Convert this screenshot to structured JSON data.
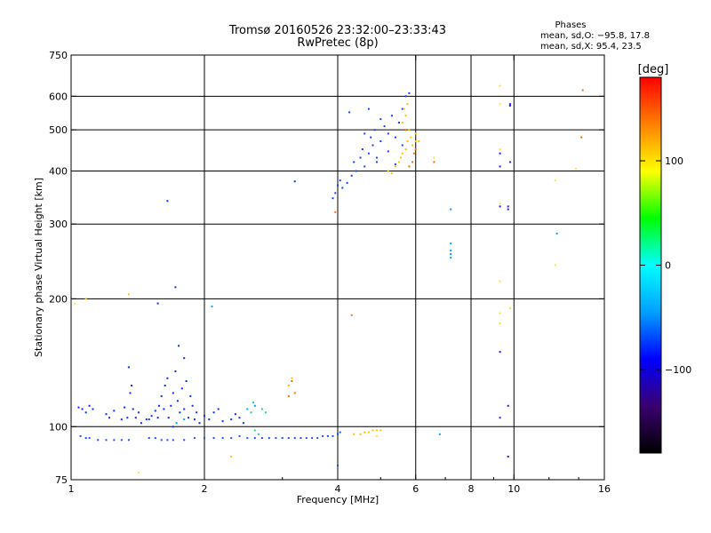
{
  "chart_data": {
    "type": "scatter",
    "title": "Tromsø 20160526 23:32:00–23:33:43",
    "subtitle": "RwPretec (8p)",
    "xlabel": "Frequency [MHz]",
    "ylabel": "Stationary phase Virtual Height [km]",
    "x_scale": "log",
    "y_scale": "log",
    "xlim": [
      1,
      16
    ],
    "ylim": [
      75,
      750
    ],
    "x_ticks": [
      1,
      2,
      4,
      6,
      8,
      10,
      16
    ],
    "x_tick_labels": [
      "1",
      "2",
      "4",
      "6",
      "8",
      "10",
      "16"
    ],
    "x_grid": [
      2,
      4,
      6,
      8,
      10
    ],
    "y_ticks": [
      75,
      100,
      200,
      300,
      400,
      500,
      600,
      750
    ],
    "y_tick_labels": [
      "75",
      "100",
      "200",
      "300",
      "400",
      "500",
      "600",
      "750"
    ],
    "y_grid": [
      100,
      200,
      300,
      400,
      500,
      600
    ],
    "phases_box": {
      "title": "Phases",
      "line_o": "mean, sd,O: −95.8, 17.8",
      "line_x": "mean, sd,X:  95.4, 23.5"
    },
    "colorbar": {
      "label": "[deg]",
      "range": [
        -180,
        180
      ],
      "ticks": [
        100,
        0,
        -100
      ],
      "tick_labels": [
        "100",
        "0",
        "−100"
      ],
      "stops": [
        "#000000",
        "#3a0070",
        "#0000ff",
        "#00a0ff",
        "#00ffff",
        "#00ff00",
        "#ffff00",
        "#ff8000",
        "#ff0000"
      ]
    },
    "series": [
      {
        "color": "#0a2cff",
        "points": [
          [
            1.04,
            111
          ],
          [
            1.06,
            110
          ],
          [
            1.08,
            108
          ],
          [
            1.1,
            112
          ],
          [
            1.12,
            110
          ],
          [
            1.2,
            107
          ],
          [
            1.22,
            105
          ],
          [
            1.25,
            109
          ],
          [
            1.3,
            104
          ],
          [
            1.32,
            111
          ],
          [
            1.34,
            105
          ],
          [
            1.36,
            120
          ],
          [
            1.37,
            125
          ],
          [
            1.38,
            110
          ],
          [
            1.4,
            105
          ],
          [
            1.42,
            108
          ],
          [
            1.44,
            102
          ],
          [
            1.5,
            104
          ],
          [
            1.52,
            106
          ],
          [
            1.55,
            109
          ],
          [
            1.57,
            105
          ],
          [
            1.58,
            112
          ],
          [
            1.6,
            118
          ],
          [
            1.62,
            110
          ],
          [
            1.63,
            125
          ],
          [
            1.65,
            130
          ],
          [
            1.66,
            105
          ],
          [
            1.68,
            112
          ],
          [
            1.7,
            120
          ],
          [
            1.72,
            135
          ],
          [
            1.74,
            115
          ],
          [
            1.76,
            108
          ],
          [
            1.78,
            123
          ],
          [
            1.8,
            110
          ],
          [
            1.82,
            128
          ],
          [
            1.84,
            105
          ],
          [
            1.86,
            118
          ],
          [
            1.88,
            112
          ],
          [
            1.9,
            104
          ],
          [
            1.92,
            108
          ],
          [
            1.95,
            102
          ],
          [
            2.0,
            106
          ],
          [
            2.05,
            104
          ],
          [
            2.1,
            108
          ],
          [
            2.15,
            110
          ],
          [
            2.2,
            103
          ],
          [
            2.3,
            104
          ],
          [
            2.35,
            107
          ],
          [
            2.4,
            105
          ],
          [
            2.45,
            102
          ],
          [
            1.35,
            138
          ],
          [
            1.57,
            195
          ],
          [
            1.65,
            340
          ],
          [
            1.72,
            213
          ],
          [
            1.75,
            155
          ],
          [
            1.8,
            145
          ],
          [
            1.48,
            104
          ],
          [
            1.7,
            100
          ],
          [
            3.2,
            378
          ]
        ]
      },
      {
        "color": "#1a50ff",
        "points": [
          [
            1.05,
            95
          ],
          [
            1.08,
            94
          ],
          [
            1.1,
            94
          ],
          [
            1.15,
            93
          ],
          [
            1.2,
            93
          ],
          [
            1.25,
            93
          ],
          [
            1.3,
            93
          ],
          [
            1.35,
            93
          ],
          [
            1.5,
            94
          ],
          [
            1.55,
            94
          ],
          [
            1.6,
            93
          ],
          [
            1.65,
            93
          ],
          [
            1.7,
            93
          ],
          [
            1.8,
            93
          ],
          [
            1.9,
            94
          ],
          [
            2.0,
            94
          ],
          [
            2.1,
            94
          ],
          [
            2.2,
            94
          ],
          [
            2.3,
            94
          ],
          [
            2.4,
            95
          ],
          [
            2.5,
            94
          ],
          [
            2.6,
            94
          ],
          [
            2.7,
            94
          ],
          [
            2.8,
            94
          ],
          [
            2.9,
            94
          ],
          [
            3.0,
            94
          ],
          [
            3.1,
            94
          ],
          [
            3.2,
            94
          ],
          [
            3.3,
            94
          ],
          [
            3.4,
            94
          ],
          [
            3.5,
            94
          ],
          [
            3.6,
            94
          ],
          [
            3.7,
            95
          ],
          [
            3.8,
            95
          ],
          [
            3.9,
            95
          ],
          [
            4.0,
            96
          ],
          [
            4.05,
            97
          ],
          [
            4.0,
            81
          ]
        ]
      },
      {
        "color": "#1a3cff",
        "points": [
          [
            3.9,
            345
          ],
          [
            3.95,
            355
          ],
          [
            4.0,
            370
          ],
          [
            4.05,
            380
          ],
          [
            4.1,
            365
          ],
          [
            4.2,
            375
          ],
          [
            4.3,
            390
          ],
          [
            4.35,
            420
          ],
          [
            4.4,
            400
          ],
          [
            4.5,
            430
          ],
          [
            4.55,
            450
          ],
          [
            4.6,
            410
          ],
          [
            4.7,
            440
          ],
          [
            4.75,
            480
          ],
          [
            4.8,
            460
          ],
          [
            4.85,
            500
          ],
          [
            4.9,
            430
          ],
          [
            5.0,
            470
          ],
          [
            5.1,
            510
          ],
          [
            5.2,
            490
          ],
          [
            5.3,
            540
          ],
          [
            5.4,
            480
          ],
          [
            5.5,
            520
          ],
          [
            5.6,
            560
          ],
          [
            5.7,
            600
          ],
          [
            5.8,
            610
          ],
          [
            4.25,
            550
          ],
          [
            4.7,
            560
          ],
          [
            5.0,
            530
          ],
          [
            4.6,
            490
          ],
          [
            4.9,
            420
          ],
          [
            5.2,
            445
          ],
          [
            5.4,
            415
          ],
          [
            5.6,
            460
          ]
        ]
      },
      {
        "color": "#ffc000",
        "points": [
          [
            5.2,
            400
          ],
          [
            5.3,
            395
          ],
          [
            5.4,
            410
          ],
          [
            5.5,
            420
          ],
          [
            5.55,
            430
          ],
          [
            5.6,
            440
          ],
          [
            5.7,
            450
          ],
          [
            5.75,
            470
          ],
          [
            5.8,
            500
          ],
          [
            5.85,
            480
          ],
          [
            5.9,
            460
          ],
          [
            6.0,
            470
          ],
          [
            5.6,
            520
          ],
          [
            5.7,
            540
          ],
          [
            5.75,
            575
          ],
          [
            5.65,
            560
          ],
          [
            4.5,
            96
          ],
          [
            4.6,
            97
          ],
          [
            4.7,
            97
          ],
          [
            4.8,
            98
          ],
          [
            4.9,
            98
          ],
          [
            5.0,
            98
          ],
          [
            4.35,
            96
          ],
          [
            2.3,
            85
          ],
          [
            1.08,
            200
          ],
          [
            1.35,
            205
          ],
          [
            6.0,
            490
          ],
          [
            6.1,
            470
          ],
          [
            3.1,
            125
          ],
          [
            3.15,
            130
          ]
        ]
      },
      {
        "color": "#ff6a00",
        "points": [
          [
            5.8,
            410
          ],
          [
            5.9,
            420
          ],
          [
            6.0,
            450
          ],
          [
            5.95,
            440
          ],
          [
            5.7,
            500
          ],
          [
            6.6,
            420
          ],
          [
            14.2,
            480
          ],
          [
            14.3,
            620
          ],
          [
            3.1,
            118
          ],
          [
            3.2,
            120
          ],
          [
            3.15,
            128
          ],
          [
            4.3,
            183
          ],
          [
            3.95,
            320
          ]
        ]
      },
      {
        "color": "#00a0ff",
        "points": [
          [
            7.2,
            325
          ],
          [
            7.2,
            270
          ],
          [
            7.2,
            260
          ],
          [
            7.2,
            255
          ],
          [
            7.2,
            250
          ],
          [
            6.8,
            96
          ],
          [
            2.08,
            192
          ],
          [
            2.5,
            110
          ],
          [
            2.6,
            112
          ],
          [
            12.5,
            285
          ],
          [
            1.73,
            102
          ],
          [
            1.8,
            104
          ]
        ]
      },
      {
        "color": "#20d0a0",
        "points": [
          [
            2.55,
            108
          ],
          [
            2.58,
            114
          ],
          [
            2.6,
            98
          ],
          [
            2.65,
            96
          ],
          [
            2.7,
            110
          ],
          [
            2.75,
            108
          ]
        ]
      },
      {
        "color": "#1a1aff",
        "points": [
          [
            9.3,
            440
          ],
          [
            9.3,
            410
          ],
          [
            9.3,
            330
          ],
          [
            9.3,
            150
          ],
          [
            9.3,
            105
          ],
          [
            9.8,
            575
          ],
          [
            9.8,
            570
          ],
          [
            9.8,
            420
          ],
          [
            9.7,
            330
          ],
          [
            9.7,
            325
          ],
          [
            9.7,
            112
          ],
          [
            9.7,
            85
          ]
        ]
      },
      {
        "color": "#ffe040",
        "points": [
          [
            9.3,
            635
          ],
          [
            9.3,
            575
          ],
          [
            9.3,
            450
          ],
          [
            9.3,
            220
          ],
          [
            9.3,
            185
          ],
          [
            9.3,
            175
          ],
          [
            9.3,
            335
          ],
          [
            9.8,
            190
          ],
          [
            12.4,
            240
          ],
          [
            12.4,
            380
          ],
          [
            13.8,
            405
          ],
          [
            6.6,
            430
          ],
          [
            4.9,
            95
          ],
          [
            1.42,
            78
          ],
          [
            1.02,
            195
          ]
        ]
      }
    ]
  }
}
